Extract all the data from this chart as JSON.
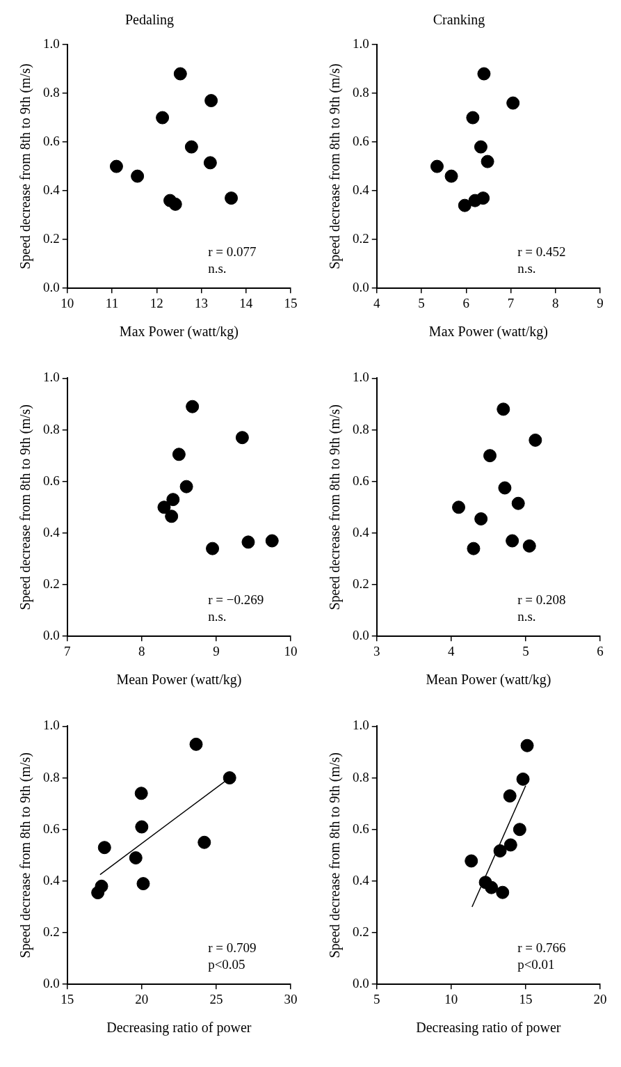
{
  "chart_data": [
    {
      "type": "scatter",
      "title": "Pedaling",
      "xlabel": "Max Power (watt/kg)",
      "ylabel": "Speed decrease from 8th to 9th (m/s)",
      "xlim": [
        10,
        15
      ],
      "xticks": [
        10,
        11,
        12,
        13,
        14,
        15
      ],
      "ylim": [
        0,
        1
      ],
      "yticks": [
        {
          "value": 0,
          "label": "0.0"
        },
        {
          "value": 0.2,
          "label": "0.2"
        },
        {
          "value": 0.4,
          "label": "0.4"
        },
        {
          "value": 0.6,
          "label": "0.6"
        },
        {
          "value": 0.8,
          "label": "0.8"
        },
        {
          "value": 1,
          "label": "1.0"
        }
      ],
      "grid": false,
      "legend": false,
      "marker": "circle",
      "annotations": [
        "r = 0.077",
        "n.s."
      ],
      "series": [
        {
          "type": "scatter",
          "color": "#000000",
          "x": [
            11.1,
            11.57,
            12.13,
            12.53,
            13.22,
            12.78,
            13.2,
            12.3,
            12.42,
            13.67
          ],
          "values": [
            0.5,
            0.46,
            0.7,
            0.88,
            0.77,
            0.58,
            0.515,
            0.36,
            0.345,
            0.37
          ]
        }
      ]
    },
    {
      "type": "scatter",
      "title": "Cranking",
      "xlabel": "Max Power (watt/kg)",
      "ylabel": "Speed decrease from 8th to 9th (m/s)",
      "xlim": [
        4,
        9
      ],
      "xticks": [
        4,
        5,
        6,
        7,
        8,
        9
      ],
      "ylim": [
        0,
        1
      ],
      "yticks": [
        {
          "value": 0,
          "label": "0.0"
        },
        {
          "value": 0.2,
          "label": "0.2"
        },
        {
          "value": 0.4,
          "label": "0.4"
        },
        {
          "value": 0.6,
          "label": "0.6"
        },
        {
          "value": 0.8,
          "label": "0.8"
        },
        {
          "value": 1,
          "label": "1.0"
        }
      ],
      "grid": false,
      "legend": false,
      "marker": "circle",
      "annotations": [
        "r = 0.452",
        "n.s."
      ],
      "series": [
        {
          "type": "scatter",
          "color": "#000000",
          "x": [
            5.35,
            5.67,
            6.15,
            6.4,
            7.05,
            6.33,
            6.48,
            5.97,
            6.2,
            6.38
          ],
          "values": [
            0.5,
            0.46,
            0.7,
            0.88,
            0.76,
            0.58,
            0.52,
            0.34,
            0.36,
            0.37
          ]
        }
      ]
    },
    {
      "type": "scatter",
      "xlabel": "Mean Power (watt/kg)",
      "ylabel": "Speed decrease from 8th to 9th (m/s)",
      "xlim": [
        7,
        10
      ],
      "xticks": [
        7,
        8,
        9,
        10
      ],
      "ylim": [
        0,
        1
      ],
      "yticks": [
        {
          "value": 0,
          "label": "0.0"
        },
        {
          "value": 0.2,
          "label": "0.2"
        },
        {
          "value": 0.4,
          "label": "0.4"
        },
        {
          "value": 0.6,
          "label": "0.6"
        },
        {
          "value": 0.8,
          "label": "0.8"
        },
        {
          "value": 1,
          "label": "1.0"
        }
      ],
      "grid": false,
      "legend": false,
      "marker": "circle",
      "annotations": [
        "r = −0.269",
        "n.s."
      ],
      "series": [
        {
          "type": "scatter",
          "color": "#000000",
          "x": [
            8.3,
            8.4,
            8.42,
            8.5,
            8.6,
            8.68,
            8.95,
            9.35,
            9.43,
            9.75
          ],
          "values": [
            0.5,
            0.465,
            0.53,
            0.705,
            0.58,
            0.89,
            0.34,
            0.77,
            0.365,
            0.37
          ]
        }
      ]
    },
    {
      "type": "scatter",
      "xlabel": "Mean Power (watt/kg)",
      "ylabel": "Speed decrease from 8th to 9th (m/s)",
      "xlim": [
        3,
        6
      ],
      "xticks": [
        3,
        4,
        5,
        6
      ],
      "ylim": [
        0,
        1
      ],
      "yticks": [
        {
          "value": 0,
          "label": "0.0"
        },
        {
          "value": 0.2,
          "label": "0.2"
        },
        {
          "value": 0.4,
          "label": "0.4"
        },
        {
          "value": 0.6,
          "label": "0.6"
        },
        {
          "value": 0.8,
          "label": "0.8"
        },
        {
          "value": 1,
          "label": "1.0"
        }
      ],
      "grid": false,
      "legend": false,
      "marker": "circle",
      "annotations": [
        "r = 0.208",
        "n.s."
      ],
      "series": [
        {
          "type": "scatter",
          "color": "#000000",
          "x": [
            4.1,
            4.3,
            4.4,
            4.52,
            4.7,
            4.72,
            4.82,
            4.9,
            5.05,
            5.13
          ],
          "values": [
            0.5,
            0.34,
            0.455,
            0.7,
            0.88,
            0.575,
            0.37,
            0.515,
            0.35,
            0.76
          ]
        }
      ]
    },
    {
      "type": "scatter",
      "xlabel": "Decreasing ratio of power",
      "ylabel": "Speed decrease from 8th to 9th (m/s)",
      "xlim": [
        15,
        30
      ],
      "xticks": [
        15,
        20,
        25,
        30
      ],
      "ylim": [
        0,
        1
      ],
      "yticks": [
        {
          "value": 0,
          "label": "0.0"
        },
        {
          "value": 0.2,
          "label": "0.2"
        },
        {
          "value": 0.4,
          "label": "0.4"
        },
        {
          "value": 0.6,
          "label": "0.6"
        },
        {
          "value": 0.8,
          "label": "0.8"
        },
        {
          "value": 1,
          "label": "1.0"
        }
      ],
      "grid": false,
      "legend": false,
      "marker": "circle",
      "annotations": [
        "r = 0.709",
        "p<0.05"
      ],
      "series": [
        {
          "type": "scatter",
          "color": "#000000",
          "x": [
            17.05,
            17.3,
            17.5,
            19.6,
            19.97,
            20.0,
            20.1,
            23.65,
            24.2,
            25.9
          ],
          "values": [
            0.355,
            0.38,
            0.53,
            0.49,
            0.74,
            0.61,
            0.39,
            0.93,
            0.55,
            0.8
          ]
        },
        {
          "type": "line",
          "color": "#000000",
          "line_style": "solid",
          "marker": "none",
          "x": [
            17.2,
            25.9
          ],
          "values": [
            0.425,
            0.8
          ]
        }
      ]
    },
    {
      "type": "scatter",
      "xlabel": "Decreasing ratio of power",
      "ylabel": "Speed decrease from 8th to 9th (m/s)",
      "xlim": [
        5,
        20
      ],
      "xticks": [
        5,
        10,
        15,
        20
      ],
      "ylim": [
        0,
        1
      ],
      "yticks": [
        {
          "value": 0,
          "label": "0.0"
        },
        {
          "value": 0.2,
          "label": "0.2"
        },
        {
          "value": 0.4,
          "label": "0.4"
        },
        {
          "value": 0.6,
          "label": "0.6"
        },
        {
          "value": 0.8,
          "label": "0.8"
        },
        {
          "value": 1,
          "label": "1.0"
        }
      ],
      "grid": false,
      "legend": false,
      "marker": "circle",
      "annotations": [
        "r = 0.766",
        "p<0.01"
      ],
      "series": [
        {
          "type": "scatter",
          "color": "#000000",
          "x": [
            11.35,
            12.3,
            12.7,
            13.28,
            13.45,
            13.99,
            13.94,
            14.6,
            14.82,
            15.1
          ],
          "values": [
            0.478,
            0.395,
            0.375,
            0.517,
            0.356,
            0.54,
            0.73,
            0.6,
            0.795,
            0.925
          ]
        },
        {
          "type": "line",
          "color": "#000000",
          "line_style": "solid",
          "marker": "none",
          "x": [
            11.4,
            15.0
          ],
          "values": [
            0.3,
            0.77
          ]
        }
      ]
    }
  ]
}
